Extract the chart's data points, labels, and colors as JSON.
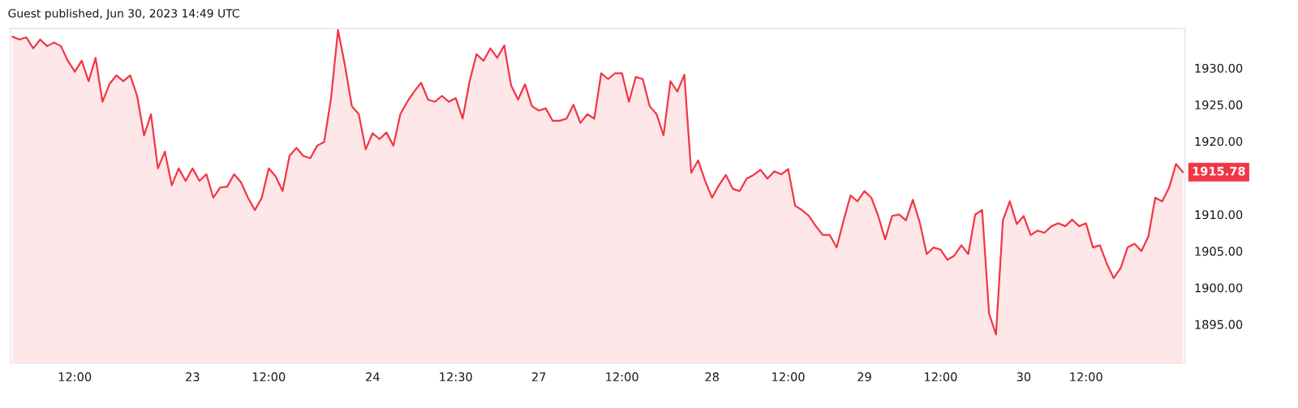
{
  "chart_data": {
    "type": "area",
    "title": "Guest published, Jun 30, 2023 14:49 UTC",
    "categories": [
      null,
      null,
      null,
      null,
      null,
      null,
      null,
      null,
      null,
      "12:00",
      null,
      null,
      null,
      null,
      null,
      null,
      null,
      null,
      null,
      null,
      null,
      null,
      null,
      null,
      null,
      null,
      "23",
      null,
      null,
      null,
      null,
      null,
      null,
      null,
      null,
      null,
      null,
      "12:00",
      null,
      null,
      null,
      null,
      null,
      null,
      null,
      null,
      null,
      null,
      null,
      null,
      null,
      null,
      "24",
      null,
      null,
      null,
      null,
      null,
      null,
      null,
      null,
      null,
      null,
      null,
      "12:30",
      null,
      null,
      null,
      null,
      null,
      null,
      null,
      null,
      null,
      null,
      null,
      "27",
      null,
      null,
      null,
      null,
      null,
      null,
      null,
      null,
      null,
      null,
      null,
      "12:00",
      null,
      null,
      null,
      null,
      null,
      null,
      null,
      null,
      null,
      null,
      null,
      null,
      "28",
      null,
      null,
      null,
      null,
      null,
      null,
      null,
      null,
      null,
      null,
      "12:00",
      null,
      null,
      null,
      null,
      null,
      null,
      null,
      null,
      null,
      null,
      "29",
      null,
      null,
      null,
      null,
      null,
      null,
      null,
      null,
      null,
      null,
      "12:00",
      null,
      null,
      null,
      null,
      null,
      null,
      null,
      null,
      null,
      null,
      null,
      "30",
      null,
      null,
      null,
      null,
      null,
      null,
      null,
      null,
      "12:00",
      null,
      null,
      null,
      null,
      null,
      null,
      null,
      null,
      null,
      null,
      null,
      null,
      null,
      null
    ],
    "series": [
      {
        "color": "#f23645",
        "values": [
          1934.3,
          1933.9,
          1934.2,
          1932.7,
          1933.9,
          1933.0,
          1933.5,
          1933.0,
          1931.0,
          1929.5,
          1931.0,
          1928.2,
          1931.4,
          1925.4,
          1927.8,
          1929.0,
          1928.2,
          1929.0,
          1926.2,
          1920.8,
          1923.7,
          1916.3,
          1918.6,
          1914.0,
          1916.3,
          1914.6,
          1916.3,
          1914.6,
          1915.5,
          1912.3,
          1913.7,
          1913.8,
          1915.5,
          1914.4,
          1912.3,
          1910.6,
          1912.3,
          1916.3,
          1915.2,
          1913.2,
          1918.0,
          1919.1,
          1918.0,
          1917.7,
          1919.4,
          1919.9,
          1925.9,
          1935.2,
          1930.4,
          1924.8,
          1923.7,
          1918.9,
          1921.1,
          1920.3,
          1921.2,
          1919.4,
          1923.7,
          1925.4,
          1926.8,
          1928.0,
          1925.7,
          1925.4,
          1926.2,
          1925.4,
          1925.9,
          1923.1,
          1928.2,
          1931.9,
          1931.0,
          1932.7,
          1931.4,
          1933.1,
          1927.6,
          1925.7,
          1927.8,
          1924.8,
          1924.2,
          1924.5,
          1922.8,
          1922.8,
          1923.1,
          1925.0,
          1922.5,
          1923.7,
          1923.1,
          1929.3,
          1928.5,
          1929.3,
          1929.3,
          1925.4,
          1928.8,
          1928.5,
          1924.8,
          1923.7,
          1920.8,
          1928.2,
          1926.8,
          1929.1,
          1915.7,
          1917.4,
          1914.6,
          1912.3,
          1914.0,
          1915.4,
          1913.5,
          1913.2,
          1914.9,
          1915.4,
          1916.1,
          1914.9,
          1915.9,
          1915.5,
          1916.2,
          1911.2,
          1910.6,
          1909.8,
          1908.4,
          1907.2,
          1907.2,
          1905.5,
          1909.2,
          1912.6,
          1911.8,
          1913.2,
          1912.3,
          1909.8,
          1906.6,
          1909.8,
          1910.0,
          1909.2,
          1912.0,
          1908.9,
          1904.6,
          1905.5,
          1905.2,
          1903.8,
          1904.4,
          1905.8,
          1904.6,
          1910.0,
          1910.6,
          1896.5,
          1893.6,
          1909.2,
          1911.8,
          1908.7,
          1909.8,
          1907.2,
          1907.8,
          1907.5,
          1908.4,
          1908.8,
          1908.4,
          1909.3,
          1908.4,
          1908.8,
          1905.5,
          1905.8,
          1903.3,
          1901.3,
          1902.7,
          1905.5,
          1906.0,
          1905.0,
          1907.0,
          1912.3,
          1911.8,
          1913.7,
          1916.9,
          1915.78
        ]
      }
    ],
    "ylim": [
      1889.7,
      1935.4
    ],
    "yticks": [
      {
        "value": 1895,
        "label": "1895.00"
      },
      {
        "value": 1900,
        "label": "1900.00"
      },
      {
        "value": 1905,
        "label": "1905.00"
      },
      {
        "value": 1910,
        "label": "1910.00"
      },
      {
        "value": 1920,
        "label": "1920.00"
      },
      {
        "value": 1925,
        "label": "1925.00"
      },
      {
        "value": 1930,
        "label": "1930.00"
      }
    ],
    "annotations": [
      "1915.78"
    ],
    "grid": false,
    "legend": false
  }
}
